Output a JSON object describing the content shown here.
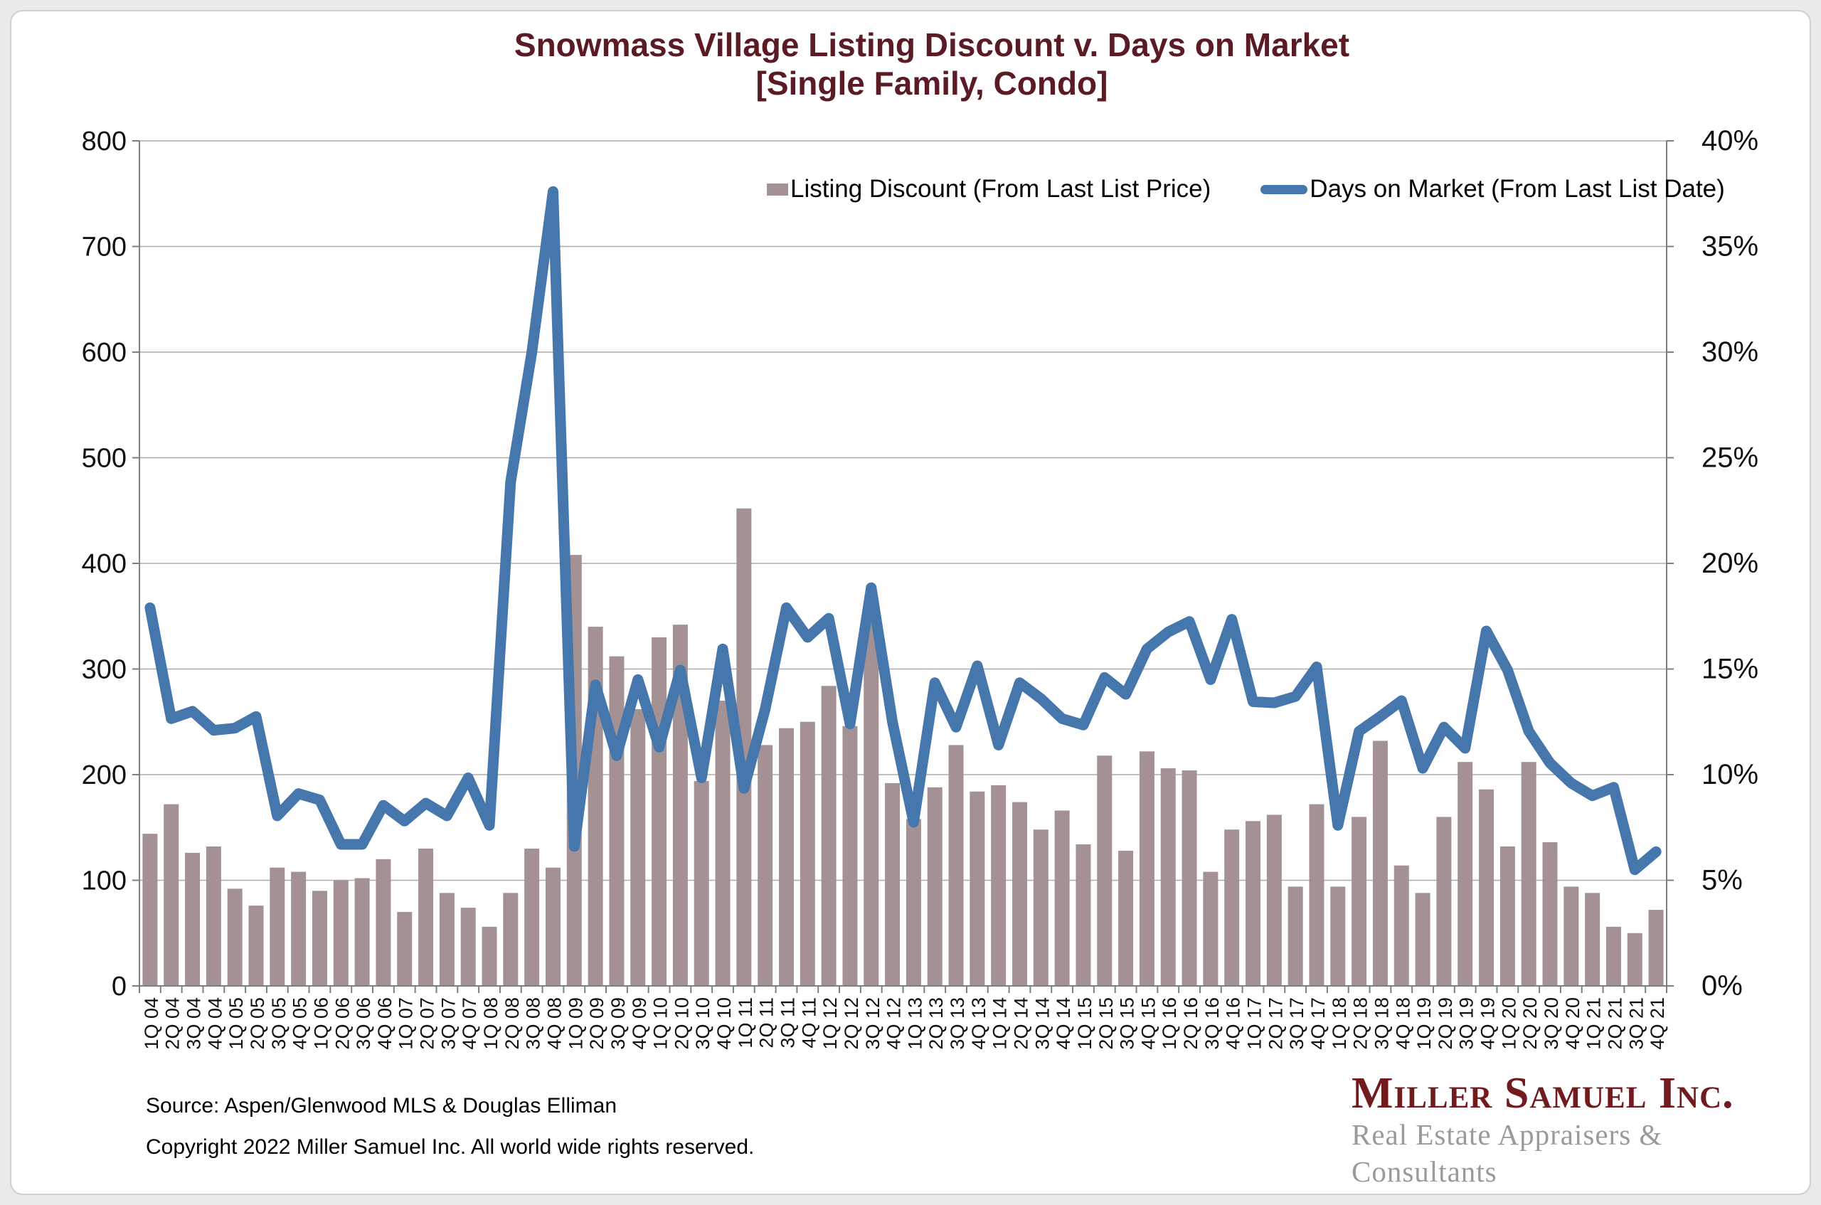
{
  "title": {
    "line1": "Snowmass Village Listing Discount v. Days on Market",
    "line2": "[Single Family, Condo]",
    "color": "#5a1b24"
  },
  "legend": {
    "bar_label": "Listing Discount (From Last List Price)",
    "line_label": "Days on Market (From Last List Date)"
  },
  "footer": {
    "source": "Source:  Aspen/Glenwood MLS & Douglas Elliman",
    "copyright": "Copyright 2022 Miller Samuel Inc.  All world wide rights reserved."
  },
  "logo": {
    "name": "Miller Samuel Inc.",
    "tagline": "Real Estate Appraisers & Consultants",
    "name_color": "#721b1f",
    "tagline_color": "#9a9a9a"
  },
  "colors": {
    "bar": "#a39193",
    "line": "#4576ac",
    "gridline": "#ababab",
    "axis": "#7f7f7f",
    "axis_text": "#111111",
    "page_background": "#e9eaeb",
    "card_background": "#ffffff"
  },
  "chart_data": {
    "type": "bar",
    "subtype": "bar+line dual-axis",
    "grid": true,
    "legend_position": "top-center-inside",
    "categories": [
      "1Q 04",
      "2Q 04",
      "3Q 04",
      "4Q 04",
      "1Q 05",
      "2Q 05",
      "3Q 05",
      "4Q 05",
      "1Q 06",
      "2Q 06",
      "3Q 06",
      "4Q 06",
      "1Q 07",
      "2Q 07",
      "3Q 07",
      "4Q 07",
      "1Q 08",
      "2Q 08",
      "3Q 08",
      "4Q 08",
      "1Q 09",
      "2Q 09",
      "3Q 09",
      "4Q 09",
      "1Q 10",
      "2Q 10",
      "3Q 10",
      "4Q 10",
      "1Q 11",
      "2Q 11",
      "3Q 11",
      "4Q 11",
      "1Q 12",
      "2Q 12",
      "3Q 12",
      "4Q 12",
      "1Q 13",
      "2Q 13",
      "3Q 13",
      "4Q 13",
      "1Q 14",
      "2Q 14",
      "3Q 14",
      "4Q 14",
      "1Q 15",
      "2Q 15",
      "3Q 15",
      "4Q 15",
      "1Q 16",
      "2Q 16",
      "3Q 16",
      "4Q 16",
      "1Q 17",
      "2Q 17",
      "3Q 17",
      "4Q 17",
      "1Q 18",
      "2Q 18",
      "3Q 18",
      "4Q 18",
      "1Q 19",
      "2Q 19",
      "3Q 19",
      "4Q 19",
      "1Q 20",
      "2Q 20",
      "3Q 20",
      "4Q 20",
      "1Q 21",
      "2Q 21",
      "3Q 21",
      "4Q 21"
    ],
    "series": [
      {
        "name": "Listing Discount (From Last List Price)",
        "type": "bar",
        "axis": "right",
        "unit": "%",
        "color": "#a39193",
        "values": [
          7.2,
          8.6,
          6.3,
          6.6,
          4.6,
          3.8,
          5.6,
          5.4,
          4.5,
          5.0,
          5.1,
          6.0,
          3.5,
          6.5,
          4.4,
          3.7,
          2.8,
          4.4,
          6.5,
          5.6,
          20.4,
          17.0,
          15.6,
          13.1,
          16.5,
          17.1,
          9.7,
          13.5,
          22.6,
          11.4,
          12.2,
          12.5,
          14.2,
          12.3,
          17.3,
          9.6,
          7.9,
          9.4,
          11.4,
          9.2,
          9.5,
          8.7,
          7.4,
          8.3,
          6.7,
          10.9,
          6.4,
          11.1,
          10.3,
          10.2,
          5.4,
          7.4,
          7.8,
          8.1,
          4.7,
          8.6,
          4.7,
          8.0,
          11.6,
          5.7,
          4.4,
          8.0,
          10.6,
          9.3,
          6.6,
          10.6,
          6.8,
          4.7,
          4.4,
          2.8,
          2.5,
          3.6
        ]
      },
      {
        "name": "Days on Market (From Last List Date)",
        "type": "line",
        "axis": "left",
        "unit": "days",
        "color": "#4576ac",
        "values": [
          358,
          253,
          260,
          242,
          244,
          255,
          161,
          182,
          176,
          134,
          134,
          171,
          156,
          173,
          161,
          197,
          152,
          477,
          600,
          752,
          132,
          285,
          218,
          290,
          226,
          299,
          197,
          319,
          187,
          262,
          358,
          330,
          348,
          248,
          377,
          250,
          155,
          287,
          245,
          303,
          228,
          287,
          272,
          253,
          247,
          292,
          276,
          319,
          335,
          345,
          290,
          347,
          269,
          268,
          274,
          302,
          152,
          241,
          255,
          270,
          206,
          245,
          225,
          336,
          299,
          241,
          211,
          192,
          180,
          188,
          110,
          127
        ]
      }
    ],
    "left_axis": {
      "title": "",
      "min": 0,
      "max": 800,
      "ticks": [
        "800",
        "700",
        "600",
        "500",
        "400",
        "300",
        "200",
        "100",
        "0"
      ]
    },
    "right_axis": {
      "title": "",
      "min": 0,
      "max": 40,
      "ticks": [
        "40%",
        "35%",
        "30%",
        "25%",
        "20%",
        "15%",
        "10%",
        "5%",
        "0%"
      ]
    }
  }
}
